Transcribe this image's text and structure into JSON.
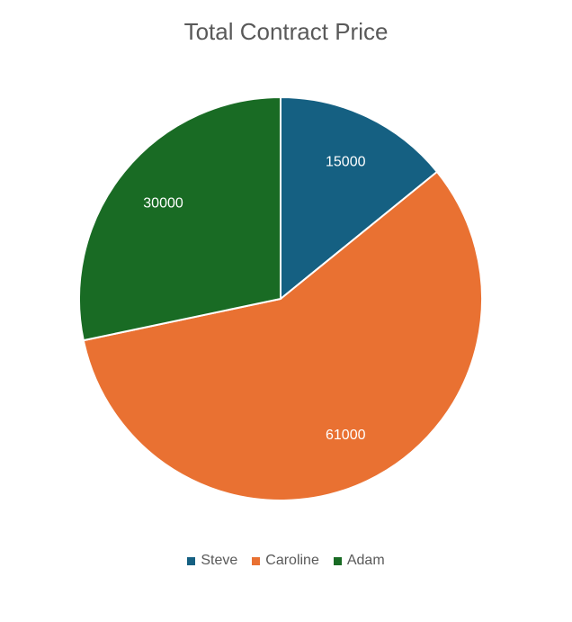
{
  "chart_data": {
    "type": "pie",
    "title": "Total Contract Price",
    "categories": [
      "Steve",
      "Caroline",
      "Adam"
    ],
    "values": [
      15000,
      61000,
      30000
    ],
    "data_labels": [
      "15000",
      "61000",
      "30000"
    ],
    "colors": [
      "#156082",
      "#E97132",
      "#196B24"
    ],
    "legend": "bottom"
  }
}
